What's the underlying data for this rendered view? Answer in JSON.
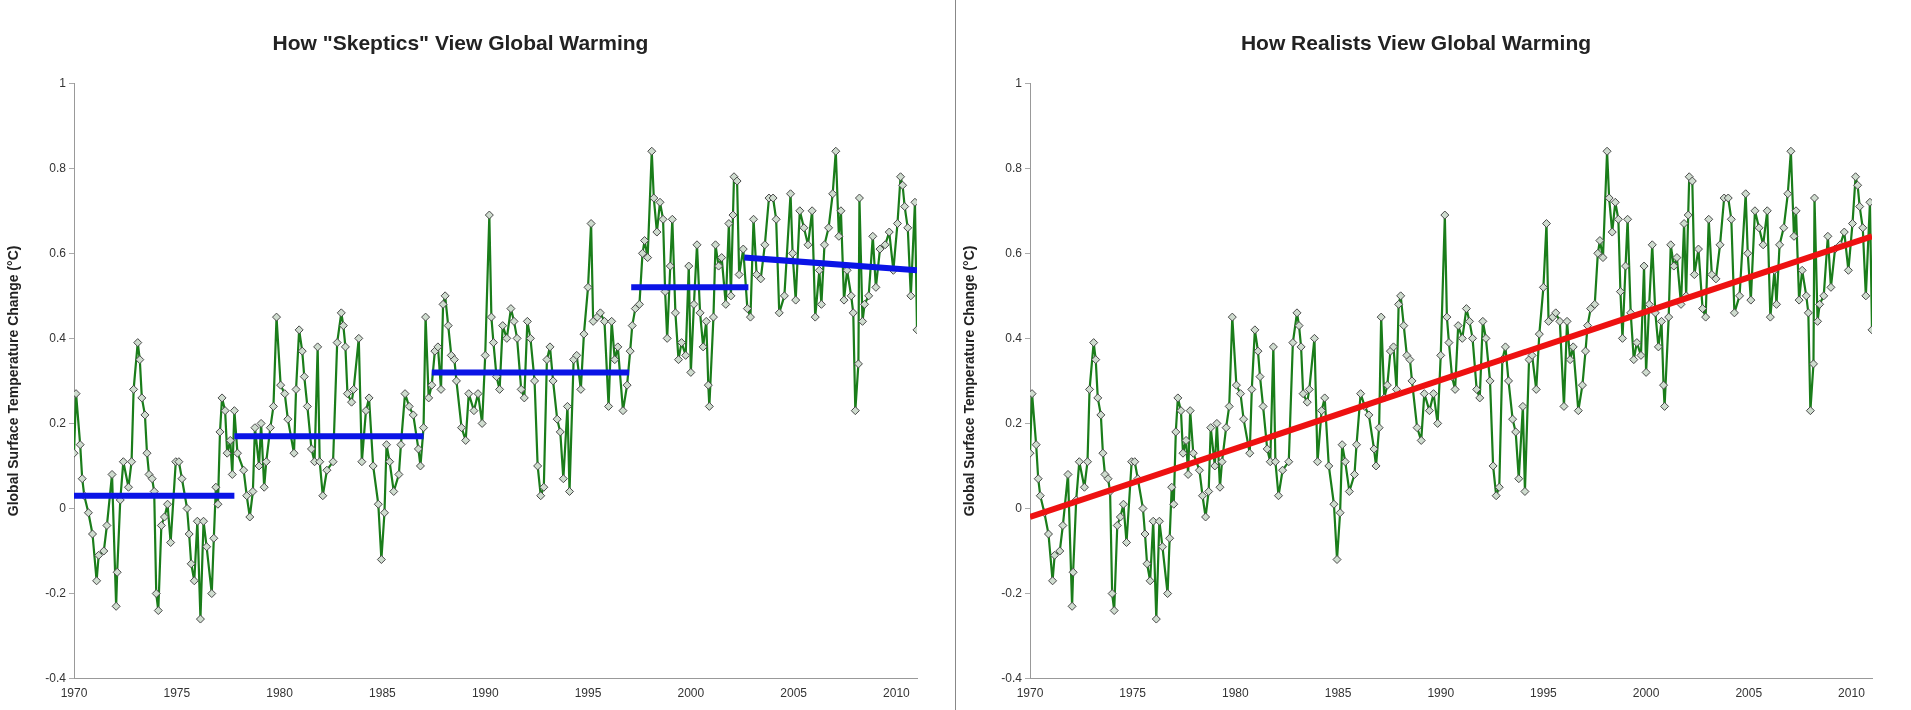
{
  "chart_data": [
    {
      "type": "line",
      "title": "How \"Skeptics\" View Global Warming",
      "ylabel": "Global Surface Temperature Change (°C)",
      "xlim": [
        1970,
        2011
      ],
      "xticks": [
        1970,
        1975,
        1980,
        1985,
        1990,
        1995,
        2000,
        2005,
        2010
      ],
      "ylim": [
        -0.4,
        1
      ],
      "yticks": [
        -0.4,
        -0.2,
        0,
        0.2,
        0.4,
        0.6,
        0.8,
        1
      ],
      "marker": "diamond",
      "series": [
        {
          "color": "#1a7d1a",
          "x": [
            1970.0,
            1970.1,
            1970.3,
            1970.4,
            1970.5,
            1970.7,
            1970.9,
            1971.1,
            1971.2,
            1971.45,
            1971.6,
            1971.85,
            1972.05,
            1972.1,
            1972.25,
            1972.4,
            1972.65,
            1972.8,
            1972.9,
            1973.1,
            1973.2,
            1973.3,
            1973.45,
            1973.55,
            1973.65,
            1973.8,
            1973.9,
            1974.0,
            1974.1,
            1974.25,
            1974.4,
            1974.55,
            1974.7,
            1974.95,
            1975.1,
            1975.25,
            1975.5,
            1975.6,
            1975.7,
            1975.85,
            1976.0,
            1976.15,
            1976.3,
            1976.45,
            1976.7,
            1976.8,
            1976.9,
            1977.0,
            1977.1,
            1977.2,
            1977.35,
            1977.45,
            1977.6,
            1977.7,
            1977.8,
            1977.95,
            1978.25,
            1978.4,
            1978.55,
            1978.7,
            1978.8,
            1979.0,
            1979.1,
            1979.25,
            1979.35,
            1979.55,
            1979.7,
            1979.85,
            1980.05,
            1980.25,
            1980.4,
            1980.7,
            1980.8,
            1980.95,
            1981.1,
            1981.2,
            1981.35,
            1981.55,
            1981.7,
            1981.85,
            1981.95,
            1982.1,
            1982.3,
            1982.6,
            1982.8,
            1983.0,
            1983.1,
            1983.2,
            1983.3,
            1983.5,
            1983.6,
            1983.85,
            1984.0,
            1984.2,
            1984.35,
            1984.55,
            1984.8,
            1984.95,
            1985.1,
            1985.2,
            1985.35,
            1985.55,
            1985.8,
            1985.9,
            1986.1,
            1986.3,
            1986.5,
            1986.75,
            1986.85,
            1987.0,
            1987.1,
            1987.25,
            1987.4,
            1987.55,
            1987.7,
            1987.85,
            1987.95,
            1988.05,
            1988.2,
            1988.35,
            1988.5,
            1988.6,
            1988.85,
            1989.05,
            1989.2,
            1989.45,
            1989.65,
            1989.85,
            1990.0,
            1990.2,
            1990.3,
            1990.4,
            1990.55,
            1990.7,
            1990.85,
            1991.05,
            1991.25,
            1991.4,
            1991.55,
            1991.75,
            1991.9,
            1992.05,
            1992.2,
            1992.4,
            1992.55,
            1992.7,
            1992.85,
            1993.0,
            1993.15,
            1993.3,
            1993.5,
            1993.65,
            1993.8,
            1994.0,
            1994.1,
            1994.3,
            1994.45,
            1994.65,
            1994.8,
            1995.0,
            1995.15,
            1995.25,
            1995.45,
            1995.6,
            1995.8,
            1996.0,
            1996.15,
            1996.3,
            1996.45,
            1996.7,
            1996.9,
            1997.05,
            1997.15,
            1997.3,
            1997.5,
            1997.65,
            1997.75,
            1997.9,
            1998.1,
            1998.2,
            1998.35,
            1998.5,
            1998.65,
            1998.75,
            1998.85,
            1999.0,
            1999.1,
            1999.25,
            1999.4,
            1999.55,
            1999.75,
            1999.9,
            2000.0,
            2000.15,
            2000.3,
            2000.45,
            2000.6,
            2000.75,
            2000.85,
            2000.9,
            2001.1,
            2001.2,
            2001.35,
            2001.5,
            2001.7,
            2001.85,
            2001.95,
            2002.05,
            2002.1,
            2002.25,
            2002.35,
            2002.55,
            2002.75,
            2002.9,
            2003.05,
            2003.2,
            2003.4,
            2003.6,
            2003.8,
            2004.0,
            2004.15,
            2004.3,
            2004.55,
            2004.85,
            2004.95,
            2005.1,
            2005.3,
            2005.5,
            2005.7,
            2005.9,
            2006.05,
            2006.25,
            2006.35,
            2006.5,
            2006.7,
            2006.9,
            2007.05,
            2007.2,
            2007.3,
            2007.45,
            2007.6,
            2007.8,
            2007.9,
            2008.0,
            2008.15,
            2008.2,
            2008.35,
            2008.45,
            2008.65,
            2008.85,
            2009.0,
            2009.2,
            2009.45,
            2009.65,
            2009.85,
            2010.05,
            2010.2,
            2010.3,
            2010.4,
            2010.55,
            2010.7,
            2010.9,
            2011.0
          ],
          "values": [
            0.13,
            0.27,
            0.15,
            0.07,
            0.03,
            -0.01,
            -0.06,
            -0.17,
            -0.11,
            -0.1,
            -0.04,
            0.08,
            -0.23,
            -0.15,
            0.02,
            0.11,
            0.05,
            0.11,
            0.28,
            0.39,
            0.35,
            0.26,
            0.22,
            0.13,
            0.08,
            0.07,
            0.04,
            -0.2,
            -0.24,
            -0.04,
            -0.02,
            0.01,
            -0.08,
            0.11,
            0.11,
            0.07,
            0,
            -0.06,
            -0.13,
            -0.17,
            -0.03,
            -0.26,
            -0.03,
            -0.09,
            -0.2,
            -0.07,
            0.05,
            0.01,
            0.18,
            0.26,
            0.23,
            0.13,
            0.16,
            0.08,
            0.23,
            0.13,
            0.09,
            0.03,
            -0.02,
            0.04,
            0.19,
            0.1,
            0.2,
            0.05,
            0.11,
            0.19,
            0.24,
            0.45,
            0.29,
            0.27,
            0.21,
            0.13,
            0.28,
            0.42,
            0.37,
            0.31,
            0.24,
            0.14,
            0.11,
            0.38,
            0.11,
            0.03,
            0.09,
            0.11,
            0.39,
            0.46,
            0.43,
            0.38,
            0.27,
            0.25,
            0.28,
            0.4,
            0.11,
            0.23,
            0.26,
            0.1,
            0.01,
            -0.12,
            -0.01,
            0.15,
            0.11,
            0.04,
            0.08,
            0.15,
            0.27,
            0.24,
            0.22,
            0.14,
            0.1,
            0.19,
            0.45,
            0.26,
            0.29,
            0.37,
            0.38,
            0.28,
            0.48,
            0.5,
            0.43,
            0.36,
            0.35,
            0.3,
            0.19,
            0.16,
            0.27,
            0.23,
            0.27,
            0.2,
            0.36,
            0.69,
            0.45,
            0.39,
            0.31,
            0.28,
            0.43,
            0.4,
            0.47,
            0.44,
            0.4,
            0.28,
            0.26,
            0.44,
            0.4,
            0.3,
            0.1,
            0.03,
            0.05,
            0.35,
            0.38,
            0.3,
            0.21,
            0.18,
            0.07,
            0.24,
            0.04,
            0.35,
            0.36,
            0.28,
            0.41,
            0.52,
            0.67,
            0.44,
            0.45,
            0.46,
            0.44,
            0.24,
            0.44,
            0.35,
            0.38,
            0.23,
            0.29,
            0.37,
            0.43,
            0.47,
            0.48,
            0.6,
            0.63,
            0.59,
            0.84,
            0.73,
            0.65,
            0.72,
            0.68,
            0.51,
            0.4,
            0.57,
            0.68,
            0.46,
            0.35,
            0.39,
            0.36,
            0.57,
            0.32,
            0.48,
            0.62,
            0.46,
            0.38,
            0.44,
            0.29,
            0.24,
            0.45,
            0.62,
            0.57,
            0.59,
            0.48,
            0.67,
            0.5,
            0.69,
            0.78,
            0.77,
            0.55,
            0.61,
            0.47,
            0.45,
            0.68,
            0.55,
            0.54,
            0.62,
            0.73,
            0.73,
            0.68,
            0.46,
            0.5,
            0.74,
            0.6,
            0.49,
            0.7,
            0.66,
            0.62,
            0.7,
            0.45,
            0.56,
            0.48,
            0.62,
            0.66,
            0.74,
            0.84,
            0.64,
            0.7,
            0.49,
            0.56,
            0.5,
            0.46,
            0.23,
            0.34,
            0.73,
            0.44,
            0.48,
            0.5,
            0.64,
            0.52,
            0.61,
            0.62,
            0.65,
            0.56,
            0.67,
            0.78,
            0.76,
            0.71,
            0.66,
            0.5,
            0.72,
            0.42
          ]
        },
        {
          "color": "#0a14e6",
          "marker": "none",
          "x": [
            1970,
            1977.8
          ],
          "values": [
            0.03,
            0.03
          ]
        },
        {
          "color": "#0a14e6",
          "marker": "none",
          "x": [
            1977.8,
            1987
          ],
          "values": [
            0.17,
            0.17
          ]
        },
        {
          "color": "#0a14e6",
          "marker": "none",
          "x": [
            1987.4,
            1997
          ],
          "values": [
            0.32,
            0.32
          ]
        },
        {
          "color": "#0a14e6",
          "marker": "none",
          "x": [
            1997.1,
            2002.8
          ],
          "values": [
            0.52,
            0.52
          ]
        },
        {
          "color": "#0a14e6",
          "marker": "none",
          "x": [
            2002.6,
            2011
          ],
          "values": [
            0.59,
            0.56
          ]
        }
      ]
    },
    {
      "type": "line",
      "title": "How Realists View Global Warming",
      "ylabel": "Global Surface Temperature Change (°C)",
      "xlim": [
        1970,
        2011
      ],
      "xticks": [
        1970,
        1975,
        1980,
        1985,
        1990,
        1995,
        2000,
        2005,
        2010
      ],
      "ylim": [
        -0.4,
        1
      ],
      "yticks": [
        -0.4,
        -0.2,
        0,
        0.2,
        0.4,
        0.6,
        0.8,
        1
      ],
      "marker": "diamond",
      "series": [
        {
          "color": "#1a7d1a",
          "x": [
            1970.0,
            1970.1,
            1970.3,
            1970.4,
            1970.5,
            1970.7,
            1970.9,
            1971.1,
            1971.2,
            1971.45,
            1971.6,
            1971.85,
            1972.05,
            1972.1,
            1972.25,
            1972.4,
            1972.65,
            1972.8,
            1972.9,
            1973.1,
            1973.2,
            1973.3,
            1973.45,
            1973.55,
            1973.65,
            1973.8,
            1973.9,
            1974.0,
            1974.1,
            1974.25,
            1974.4,
            1974.55,
            1974.7,
            1974.95,
            1975.1,
            1975.25,
            1975.5,
            1975.6,
            1975.7,
            1975.85,
            1976.0,
            1976.15,
            1976.3,
            1976.45,
            1976.7,
            1976.8,
            1976.9,
            1977.0,
            1977.1,
            1977.2,
            1977.35,
            1977.45,
            1977.6,
            1977.7,
            1977.8,
            1977.95,
            1978.25,
            1978.4,
            1978.55,
            1978.7,
            1978.8,
            1979.0,
            1979.1,
            1979.25,
            1979.35,
            1979.55,
            1979.7,
            1979.85,
            1980.05,
            1980.25,
            1980.4,
            1980.7,
            1980.8,
            1980.95,
            1981.1,
            1981.2,
            1981.35,
            1981.55,
            1981.7,
            1981.85,
            1981.95,
            1982.1,
            1982.3,
            1982.6,
            1982.8,
            1983.0,
            1983.1,
            1983.2,
            1983.3,
            1983.5,
            1983.6,
            1983.85,
            1984.0,
            1984.2,
            1984.35,
            1984.55,
            1984.8,
            1984.95,
            1985.1,
            1985.2,
            1985.35,
            1985.55,
            1985.8,
            1985.9,
            1986.1,
            1986.3,
            1986.5,
            1986.75,
            1986.85,
            1987.0,
            1987.1,
            1987.25,
            1987.4,
            1987.55,
            1987.7,
            1987.85,
            1987.95,
            1988.05,
            1988.2,
            1988.35,
            1988.5,
            1988.6,
            1988.85,
            1989.05,
            1989.2,
            1989.45,
            1989.65,
            1989.85,
            1990.0,
            1990.2,
            1990.3,
            1990.4,
            1990.55,
            1990.7,
            1990.85,
            1991.05,
            1991.25,
            1991.4,
            1991.55,
            1991.75,
            1991.9,
            1992.05,
            1992.2,
            1992.4,
            1992.55,
            1992.7,
            1992.85,
            1993.0,
            1993.15,
            1993.3,
            1993.5,
            1993.65,
            1993.8,
            1994.0,
            1994.1,
            1994.3,
            1994.45,
            1994.65,
            1994.8,
            1995.0,
            1995.15,
            1995.25,
            1995.45,
            1995.6,
            1995.8,
            1996.0,
            1996.15,
            1996.3,
            1996.45,
            1996.7,
            1996.9,
            1997.05,
            1997.15,
            1997.3,
            1997.5,
            1997.65,
            1997.75,
            1997.9,
            1998.1,
            1998.2,
            1998.35,
            1998.5,
            1998.65,
            1998.75,
            1998.85,
            1999.0,
            1999.1,
            1999.25,
            1999.4,
            1999.55,
            1999.75,
            1999.9,
            2000.0,
            2000.15,
            2000.3,
            2000.45,
            2000.6,
            2000.75,
            2000.85,
            2000.9,
            2001.1,
            2001.2,
            2001.35,
            2001.5,
            2001.7,
            2001.85,
            2001.95,
            2002.05,
            2002.1,
            2002.25,
            2002.35,
            2002.55,
            2002.75,
            2002.9,
            2003.05,
            2003.2,
            2003.4,
            2003.6,
            2003.8,
            2004.0,
            2004.15,
            2004.3,
            2004.55,
            2004.85,
            2004.95,
            2005.1,
            2005.3,
            2005.5,
            2005.7,
            2005.9,
            2006.05,
            2006.25,
            2006.35,
            2006.5,
            2006.7,
            2006.9,
            2007.05,
            2007.2,
            2007.3,
            2007.45,
            2007.6,
            2007.8,
            2007.9,
            2008.0,
            2008.15,
            2008.2,
            2008.35,
            2008.45,
            2008.65,
            2008.85,
            2009.0,
            2009.2,
            2009.45,
            2009.65,
            2009.85,
            2010.05,
            2010.2,
            2010.3,
            2010.4,
            2010.55,
            2010.7,
            2010.9,
            2011.0
          ],
          "values": [
            0.13,
            0.27,
            0.15,
            0.07,
            0.03,
            -0.01,
            -0.06,
            -0.17,
            -0.11,
            -0.1,
            -0.04,
            0.08,
            -0.23,
            -0.15,
            0.02,
            0.11,
            0.05,
            0.11,
            0.28,
            0.39,
            0.35,
            0.26,
            0.22,
            0.13,
            0.08,
            0.07,
            0.04,
            -0.2,
            -0.24,
            -0.04,
            -0.02,
            0.01,
            -0.08,
            0.11,
            0.11,
            0.07,
            0,
            -0.06,
            -0.13,
            -0.17,
            -0.03,
            -0.26,
            -0.03,
            -0.09,
            -0.2,
            -0.07,
            0.05,
            0.01,
            0.18,
            0.26,
            0.23,
            0.13,
            0.16,
            0.08,
            0.23,
            0.13,
            0.09,
            0.03,
            -0.02,
            0.04,
            0.19,
            0.1,
            0.2,
            0.05,
            0.11,
            0.19,
            0.24,
            0.45,
            0.29,
            0.27,
            0.21,
            0.13,
            0.28,
            0.42,
            0.37,
            0.31,
            0.24,
            0.14,
            0.11,
            0.38,
            0.11,
            0.03,
            0.09,
            0.11,
            0.39,
            0.46,
            0.43,
            0.38,
            0.27,
            0.25,
            0.28,
            0.4,
            0.11,
            0.23,
            0.26,
            0.1,
            0.01,
            -0.12,
            -0.01,
            0.15,
            0.11,
            0.04,
            0.08,
            0.15,
            0.27,
            0.24,
            0.22,
            0.14,
            0.1,
            0.19,
            0.45,
            0.26,
            0.29,
            0.37,
            0.38,
            0.28,
            0.48,
            0.5,
            0.43,
            0.36,
            0.35,
            0.3,
            0.19,
            0.16,
            0.27,
            0.23,
            0.27,
            0.2,
            0.36,
            0.69,
            0.45,
            0.39,
            0.31,
            0.28,
            0.43,
            0.4,
            0.47,
            0.44,
            0.4,
            0.28,
            0.26,
            0.44,
            0.4,
            0.3,
            0.1,
            0.03,
            0.05,
            0.35,
            0.38,
            0.3,
            0.21,
            0.18,
            0.07,
            0.24,
            0.04,
            0.35,
            0.36,
            0.28,
            0.41,
            0.52,
            0.67,
            0.44,
            0.45,
            0.46,
            0.44,
            0.24,
            0.44,
            0.35,
            0.38,
            0.23,
            0.29,
            0.37,
            0.43,
            0.47,
            0.48,
            0.6,
            0.63,
            0.59,
            0.84,
            0.73,
            0.65,
            0.72,
            0.68,
            0.51,
            0.4,
            0.57,
            0.68,
            0.46,
            0.35,
            0.39,
            0.36,
            0.57,
            0.32,
            0.48,
            0.62,
            0.46,
            0.38,
            0.44,
            0.29,
            0.24,
            0.45,
            0.62,
            0.57,
            0.59,
            0.48,
            0.67,
            0.5,
            0.69,
            0.78,
            0.77,
            0.55,
            0.61,
            0.47,
            0.45,
            0.68,
            0.55,
            0.54,
            0.62,
            0.73,
            0.73,
            0.68,
            0.46,
            0.5,
            0.74,
            0.6,
            0.49,
            0.7,
            0.66,
            0.62,
            0.7,
            0.45,
            0.56,
            0.48,
            0.62,
            0.66,
            0.74,
            0.84,
            0.64,
            0.7,
            0.49,
            0.56,
            0.5,
            0.46,
            0.23,
            0.34,
            0.73,
            0.44,
            0.48,
            0.5,
            0.64,
            0.52,
            0.61,
            0.62,
            0.65,
            0.56,
            0.67,
            0.78,
            0.76,
            0.71,
            0.66,
            0.5,
            0.72,
            0.42
          ]
        },
        {
          "color": "#ee1111",
          "marker": "none",
          "x": [
            1970,
            2011
          ],
          "values": [
            -0.02,
            0.64
          ]
        }
      ]
    }
  ]
}
